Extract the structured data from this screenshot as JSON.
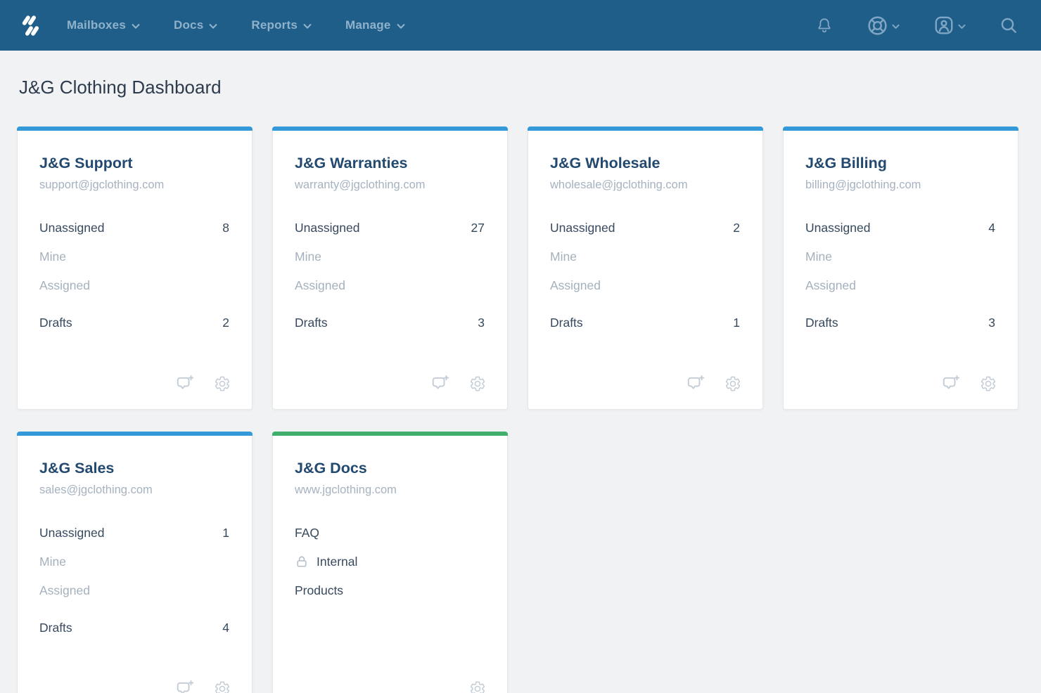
{
  "nav": {
    "logo": "helpscout-logo",
    "items": [
      {
        "label": "Mailboxes"
      },
      {
        "label": "Docs"
      },
      {
        "label": "Reports"
      },
      {
        "label": "Manage"
      }
    ],
    "right": [
      {
        "name": "notifications",
        "icon": "bell",
        "chevron": false
      },
      {
        "name": "help",
        "icon": "life-ring",
        "chevron": true
      },
      {
        "name": "account",
        "icon": "account",
        "chevron": true
      },
      {
        "name": "search",
        "icon": "search",
        "chevron": false
      }
    ]
  },
  "page": {
    "title": "J&G Clothing Dashboard"
  },
  "colors": {
    "nav_bg": "#205E8A",
    "mailbox_accent": "#3499D9",
    "docs_accent": "#41AF6C",
    "page_bg": "#F1F2F3"
  },
  "cards": [
    {
      "type": "mailbox",
      "accent": "#3499D9",
      "title": "J&G Support",
      "subtitle": "support@jgclothing.com",
      "rows": [
        {
          "label": "Unassigned",
          "count": "8",
          "muted": false
        },
        {
          "label": "Mine",
          "count": "",
          "muted": true
        },
        {
          "label": "Assigned",
          "count": "",
          "muted": true
        },
        {
          "label": "Drafts",
          "count": "2",
          "muted": false,
          "gap_above": true
        }
      ],
      "actions": [
        "new-conversation",
        "settings"
      ]
    },
    {
      "type": "mailbox",
      "accent": "#3499D9",
      "title": "J&G Warranties",
      "subtitle": "warranty@jgclothing.com",
      "rows": [
        {
          "label": "Unassigned",
          "count": "27",
          "muted": false
        },
        {
          "label": "Mine",
          "count": "",
          "muted": true
        },
        {
          "label": "Assigned",
          "count": "",
          "muted": true
        },
        {
          "label": "Drafts",
          "count": "3",
          "muted": false,
          "gap_above": true
        }
      ],
      "actions": [
        "new-conversation",
        "settings"
      ]
    },
    {
      "type": "mailbox",
      "accent": "#3499D9",
      "title": "J&G Wholesale",
      "subtitle": "wholesale@jgclothing.com",
      "rows": [
        {
          "label": "Unassigned",
          "count": "2",
          "muted": false
        },
        {
          "label": "Mine",
          "count": "",
          "muted": true
        },
        {
          "label": "Assigned",
          "count": "",
          "muted": true
        },
        {
          "label": "Drafts",
          "count": "1",
          "muted": false,
          "gap_above": true
        }
      ],
      "actions": [
        "new-conversation",
        "settings"
      ]
    },
    {
      "type": "mailbox",
      "accent": "#3499D9",
      "title": "J&G Billing",
      "subtitle": "billing@jgclothing.com",
      "rows": [
        {
          "label": "Unassigned",
          "count": "4",
          "muted": false
        },
        {
          "label": "Mine",
          "count": "",
          "muted": true
        },
        {
          "label": "Assigned",
          "count": "",
          "muted": true
        },
        {
          "label": "Drafts",
          "count": "3",
          "muted": false,
          "gap_above": true
        }
      ],
      "actions": [
        "new-conversation",
        "settings"
      ]
    },
    {
      "type": "mailbox",
      "accent": "#3499D9",
      "title": "J&G Sales",
      "subtitle": "sales@jgclothing.com",
      "rows": [
        {
          "label": "Unassigned",
          "count": "1",
          "muted": false
        },
        {
          "label": "Mine",
          "count": "",
          "muted": true
        },
        {
          "label": "Assigned",
          "count": "",
          "muted": true
        },
        {
          "label": "Drafts",
          "count": "4",
          "muted": false,
          "gap_above": true
        }
      ],
      "actions": [
        "new-conversation",
        "settings"
      ]
    },
    {
      "type": "docs",
      "accent": "#41AF6C",
      "title": "J&G Docs",
      "subtitle": "www.jgclothing.com",
      "rows": [
        {
          "label": "FAQ",
          "count": "",
          "muted": false
        },
        {
          "label": "Internal",
          "count": "",
          "muted": false,
          "icon": "lock"
        },
        {
          "label": "Products",
          "count": "",
          "muted": false
        }
      ],
      "actions": [
        "settings"
      ]
    }
  ]
}
